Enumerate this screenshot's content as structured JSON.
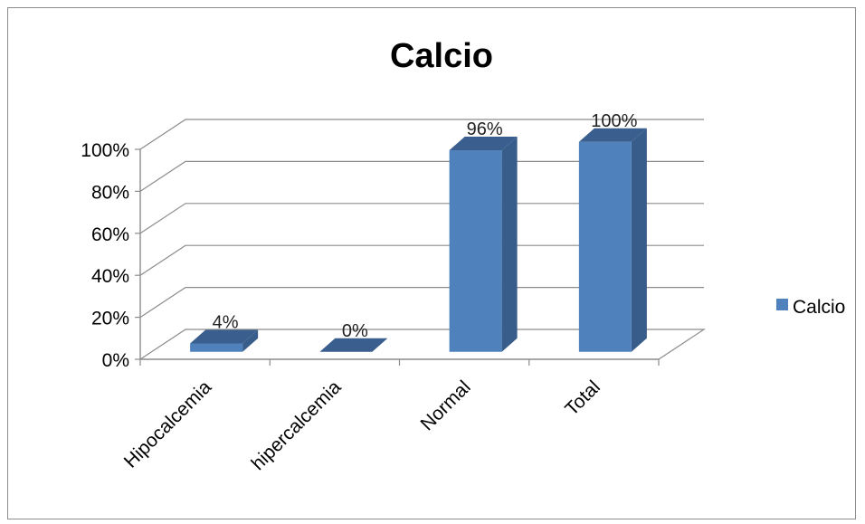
{
  "chart_data": {
    "type": "bar",
    "title": "Calcio",
    "categories": [
      "Hipocalcemia",
      "hipercalcemia",
      "Normal",
      "Total"
    ],
    "series": [
      {
        "name": "Calcio",
        "values": [
          4,
          0,
          96,
          100
        ]
      }
    ],
    "data_labels": [
      "4%",
      "0%",
      "96%",
      "100%"
    ],
    "yticks": [
      "0%",
      "20%",
      "40%",
      "60%",
      "80%",
      "100%"
    ],
    "ylim": [
      0,
      100
    ],
    "grid": true,
    "three_d": true,
    "legend_position": "right",
    "colors": {
      "front": "#4f81bd",
      "side": "#385d8a",
      "top": "#3a5f8f"
    }
  }
}
